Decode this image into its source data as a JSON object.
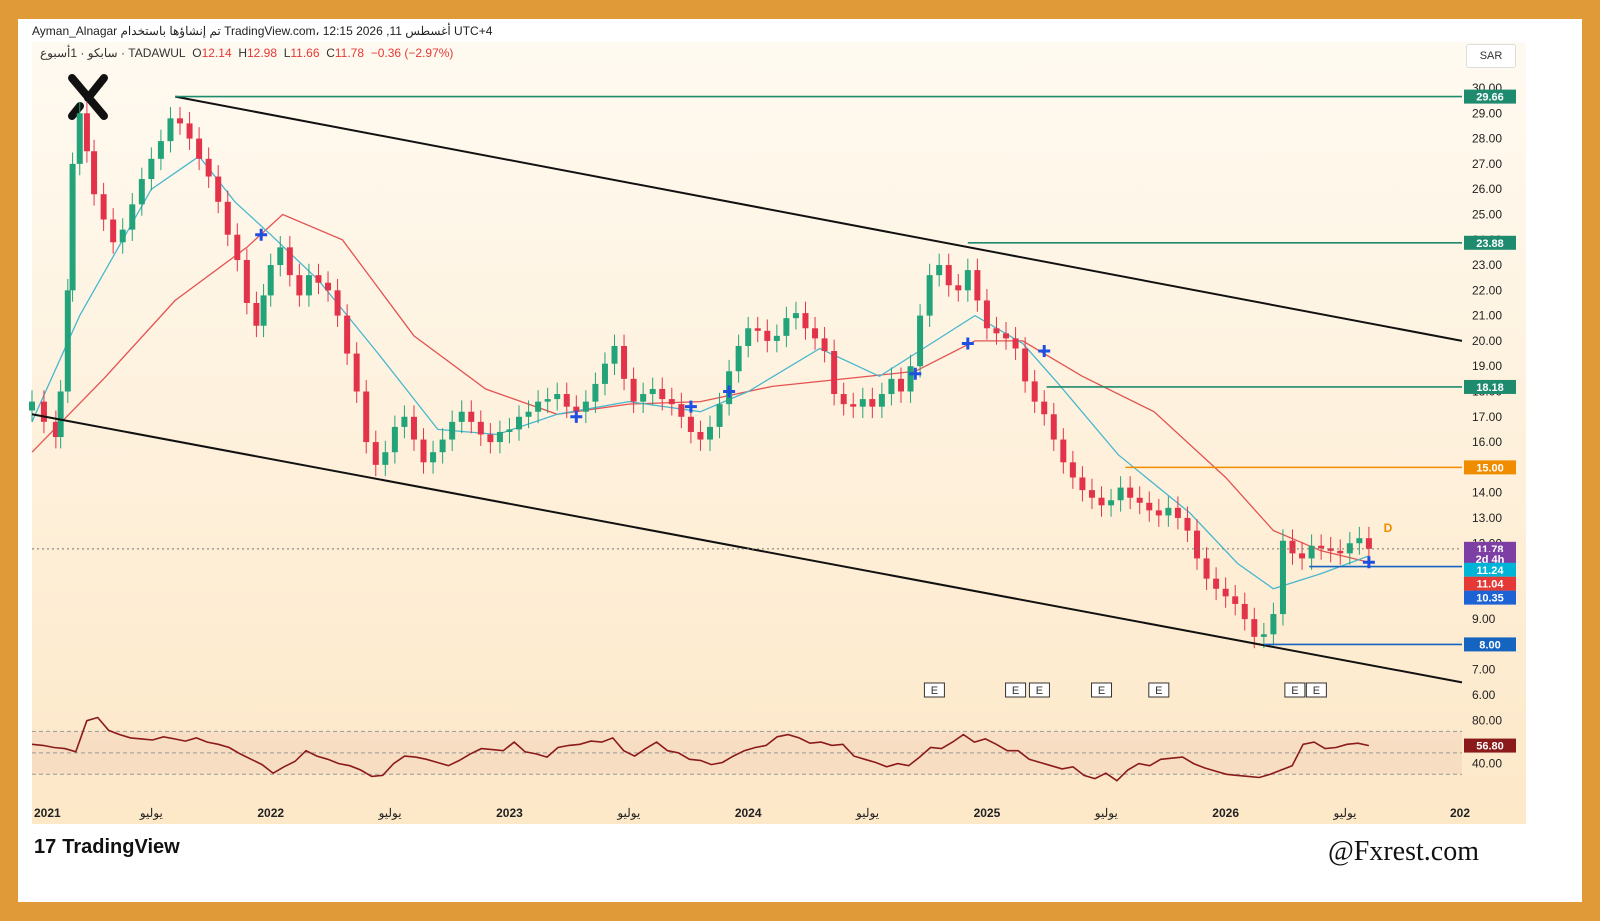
{
  "header": {
    "author_line": "Ayman_Alnagar تم إنشاؤها باستخدام TradingView.com، 12:15 2026 ,11 أغسطس UTC+4",
    "symbol_line": "سابكو · 1أسبوع · TADAWUL",
    "ohlc": {
      "o_label": "O",
      "o": "12.14",
      "h_label": "H",
      "h": "12.98",
      "l_label": "L",
      "l": "11.66",
      "c_label": "C",
      "c": "11.78",
      "chg": "−0.36 (−2.97%)"
    },
    "currency": "SAR"
  },
  "footer": {
    "brand": "TradingView",
    "brand_logo": "17",
    "watermark": "@Fxrest.com"
  },
  "colors": {
    "up": "#22a37a",
    "down": "#e2334a",
    "ema_fast": "#49b7cf",
    "ema_slow": "#e35353",
    "rsi": "#8b1a1a",
    "frame": "#e09a38"
  },
  "chart_data": [
    {
      "type": "candlestick",
      "timeframe": "1W",
      "x_ticks": [
        "2021",
        "يوليو",
        "2022",
        "يوليو",
        "2023",
        "يوليو",
        "2024",
        "يوليو",
        "2025",
        "يوليو",
        "2026",
        "يوليو",
        "202"
      ],
      "y_ticks": [
        "6.00",
        "7.00",
        "8.00",
        "9.00",
        "10.00",
        "11.00",
        "12.00",
        "13.00",
        "14.00",
        "15.00",
        "16.00",
        "17.00",
        "18.00",
        "19.00",
        "20.00",
        "21.00",
        "22.00",
        "23.00",
        "24.00",
        "25.00",
        "26.00",
        "27.00",
        "28.00",
        "29.00",
        "30.00"
      ],
      "ylim": [
        6,
        30
      ],
      "xlim": [
        2021.0,
        2026.99
      ],
      "series": [
        {
          "name": "price",
          "points": [
            [
              2021.0,
              17.6
            ],
            [
              2021.05,
              16.8
            ],
            [
              2021.1,
              16.2
            ],
            [
              2021.12,
              18.0
            ],
            [
              2021.15,
              22.0
            ],
            [
              2021.17,
              27.0
            ],
            [
              2021.2,
              29.0
            ],
            [
              2021.23,
              27.5
            ],
            [
              2021.26,
              25.8
            ],
            [
              2021.3,
              24.8
            ],
            [
              2021.34,
              23.9
            ],
            [
              2021.38,
              24.4
            ],
            [
              2021.42,
              25.4
            ],
            [
              2021.46,
              26.4
            ],
            [
              2021.5,
              27.2
            ],
            [
              2021.54,
              27.9
            ],
            [
              2021.58,
              28.8
            ],
            [
              2021.62,
              28.6
            ],
            [
              2021.66,
              28.0
            ],
            [
              2021.7,
              27.2
            ],
            [
              2021.74,
              26.5
            ],
            [
              2021.78,
              25.5
            ],
            [
              2021.82,
              24.2
            ],
            [
              2021.86,
              23.2
            ],
            [
              2021.9,
              21.5
            ],
            [
              2021.94,
              20.6
            ],
            [
              2021.97,
              21.8
            ],
            [
              2022.0,
              23.0
            ],
            [
              2022.04,
              23.7
            ],
            [
              2022.08,
              22.6
            ],
            [
              2022.12,
              21.8
            ],
            [
              2022.16,
              22.6
            ],
            [
              2022.2,
              22.3
            ],
            [
              2022.24,
              22.0
            ],
            [
              2022.28,
              21.0
            ],
            [
              2022.32,
              19.5
            ],
            [
              2022.36,
              18.0
            ],
            [
              2022.4,
              16.0
            ],
            [
              2022.44,
              15.1
            ],
            [
              2022.48,
              15.6
            ],
            [
              2022.52,
              16.6
            ],
            [
              2022.56,
              17.0
            ],
            [
              2022.6,
              16.1
            ],
            [
              2022.64,
              15.2
            ],
            [
              2022.68,
              15.6
            ],
            [
              2022.72,
              16.1
            ],
            [
              2022.76,
              16.8
            ],
            [
              2022.8,
              17.2
            ],
            [
              2022.84,
              16.8
            ],
            [
              2022.88,
              16.3
            ],
            [
              2022.92,
              16.0
            ],
            [
              2022.96,
              16.4
            ],
            [
              2023.0,
              16.5
            ],
            [
              2023.04,
              17.0
            ],
            [
              2023.08,
              17.2
            ],
            [
              2023.12,
              17.6
            ],
            [
              2023.16,
              17.7
            ],
            [
              2023.2,
              17.9
            ],
            [
              2023.24,
              17.4
            ],
            [
              2023.28,
              17.2
            ],
            [
              2023.32,
              17.6
            ],
            [
              2023.36,
              18.3
            ],
            [
              2023.4,
              19.1
            ],
            [
              2023.44,
              19.8
            ],
            [
              2023.48,
              18.5
            ],
            [
              2023.52,
              17.6
            ],
            [
              2023.56,
              17.9
            ],
            [
              2023.6,
              18.1
            ],
            [
              2023.64,
              17.7
            ],
            [
              2023.68,
              17.5
            ],
            [
              2023.72,
              17.0
            ],
            [
              2023.76,
              16.4
            ],
            [
              2023.8,
              16.1
            ],
            [
              2023.84,
              16.6
            ],
            [
              2023.88,
              17.5
            ],
            [
              2023.92,
              18.8
            ],
            [
              2023.96,
              19.8
            ],
            [
              2024.0,
              20.5
            ],
            [
              2024.04,
              20.4
            ],
            [
              2024.08,
              20.0
            ],
            [
              2024.12,
              20.2
            ],
            [
              2024.16,
              20.9
            ],
            [
              2024.2,
              21.1
            ],
            [
              2024.24,
              20.5
            ],
            [
              2024.28,
              20.1
            ],
            [
              2024.32,
              19.6
            ],
            [
              2024.36,
              17.9
            ],
            [
              2024.4,
              17.5
            ],
            [
              2024.44,
              17.4
            ],
            [
              2024.48,
              17.7
            ],
            [
              2024.52,
              17.4
            ],
            [
              2024.56,
              17.9
            ],
            [
              2024.6,
              18.5
            ],
            [
              2024.64,
              18.0
            ],
            [
              2024.68,
              19.0
            ],
            [
              2024.72,
              21.0
            ],
            [
              2024.76,
              22.6
            ],
            [
              2024.8,
              23.0
            ],
            [
              2024.84,
              22.2
            ],
            [
              2024.88,
              22.0
            ],
            [
              2024.92,
              22.8
            ],
            [
              2024.96,
              21.6
            ],
            [
              2025.0,
              20.5
            ],
            [
              2025.04,
              20.3
            ],
            [
              2025.08,
              20.1
            ],
            [
              2025.12,
              19.7
            ],
            [
              2025.16,
              18.4
            ],
            [
              2025.2,
              17.6
            ],
            [
              2025.24,
              17.1
            ],
            [
              2025.28,
              16.1
            ],
            [
              2025.32,
              15.2
            ],
            [
              2025.36,
              14.6
            ],
            [
              2025.4,
              14.1
            ],
            [
              2025.44,
              13.8
            ],
            [
              2025.48,
              13.5
            ],
            [
              2025.52,
              13.7
            ],
            [
              2025.56,
              14.2
            ],
            [
              2025.6,
              13.8
            ],
            [
              2025.64,
              13.6
            ],
            [
              2025.68,
              13.3
            ],
            [
              2025.72,
              13.1
            ],
            [
              2025.76,
              13.4
            ],
            [
              2025.8,
              13.0
            ],
            [
              2025.84,
              12.5
            ],
            [
              2025.88,
              11.4
            ],
            [
              2025.92,
              10.6
            ],
            [
              2025.96,
              10.2
            ],
            [
              2026.0,
              9.9
            ],
            [
              2026.04,
              9.6
            ],
            [
              2026.08,
              9.0
            ],
            [
              2026.12,
              8.3
            ],
            [
              2026.16,
              8.4
            ],
            [
              2026.2,
              9.2
            ],
            [
              2026.24,
              12.1
            ],
            [
              2026.28,
              11.6
            ],
            [
              2026.32,
              11.4
            ],
            [
              2026.36,
              11.9
            ],
            [
              2026.4,
              11.8
            ],
            [
              2026.44,
              11.7
            ],
            [
              2026.48,
              11.6
            ],
            [
              2026.52,
              12.0
            ],
            [
              2026.56,
              12.2
            ],
            [
              2026.6,
              11.78
            ]
          ]
        },
        {
          "name": "ema_fast",
          "points": [
            [
              2021.0,
              16.8
            ],
            [
              2021.2,
              21.0
            ],
            [
              2021.5,
              26.0
            ],
            [
              2021.7,
              27.3
            ],
            [
              2021.85,
              25.5
            ],
            [
              2022.0,
              24.2
            ],
            [
              2022.2,
              22.4
            ],
            [
              2022.45,
              19.5
            ],
            [
              2022.7,
              16.5
            ],
            [
              2022.95,
              16.3
            ],
            [
              2023.2,
              17.1
            ],
            [
              2023.5,
              17.6
            ],
            [
              2023.8,
              17.2
            ],
            [
              2024.0,
              18.0
            ],
            [
              2024.3,
              19.7
            ],
            [
              2024.55,
              18.6
            ],
            [
              2024.75,
              19.8
            ],
            [
              2024.95,
              21.0
            ],
            [
              2025.15,
              19.9
            ],
            [
              2025.3,
              18.3
            ],
            [
              2025.55,
              15.5
            ],
            [
              2025.85,
              13.2
            ],
            [
              2026.05,
              11.2
            ],
            [
              2026.2,
              10.2
            ],
            [
              2026.4,
              10.8
            ],
            [
              2026.6,
              11.5
            ]
          ]
        },
        {
          "name": "ema_slow",
          "points": [
            [
              2021.0,
              15.6
            ],
            [
              2021.3,
              18.5
            ],
            [
              2021.6,
              21.6
            ],
            [
              2021.9,
              23.7
            ],
            [
              2022.05,
              25.0
            ],
            [
              2022.3,
              24.0
            ],
            [
              2022.6,
              20.2
            ],
            [
              2022.9,
              18.1
            ],
            [
              2023.2,
              17.1
            ],
            [
              2023.5,
              17.5
            ],
            [
              2023.8,
              17.6
            ],
            [
              2024.1,
              18.2
            ],
            [
              2024.4,
              18.5
            ],
            [
              2024.7,
              18.8
            ],
            [
              2024.95,
              20.0
            ],
            [
              2025.15,
              20.0
            ],
            [
              2025.4,
              18.6
            ],
            [
              2025.7,
              17.2
            ],
            [
              2026.0,
              14.6
            ],
            [
              2026.2,
              12.5
            ],
            [
              2026.4,
              11.7
            ],
            [
              2026.6,
              11.25
            ]
          ]
        }
      ],
      "annotations": {
        "channel": [
          [
            2021.6,
            29.66,
            2026.99,
            20.0
          ],
          [
            2021.0,
            17.1,
            2026.99,
            6.5
          ]
        ],
        "levels": [
          {
            "value": 29.66,
            "label": "29.66",
            "from": 2021.6,
            "color": "#1e8a6e"
          },
          {
            "value": 23.88,
            "label": "23.88",
            "from": 2024.92,
            "color": "#1e8a6e"
          },
          {
            "value": 18.18,
            "label": "18.18",
            "from": 2025.25,
            "color": "#1e8a6e"
          },
          {
            "value": 15.0,
            "label": "15.00",
            "from": 2025.58,
            "color": "#f08c00"
          },
          {
            "value": 11.08,
            "label": "11.08",
            "from": 2026.35,
            "color": "#1565c0"
          },
          {
            "value": 8.0,
            "label": "8.00",
            "from": 2026.16,
            "color": "#1565c0"
          }
        ],
        "price_tags": [
          {
            "value": 11.78,
            "label": "11.78",
            "color": "#7e3fa4"
          },
          {
            "value": 11.38,
            "label": "2d 4h",
            "color": "#7e3fa4"
          },
          {
            "value": 10.95,
            "label": "11.24",
            "color": "#00b4d8"
          },
          {
            "value": 10.4,
            "label": "11.04",
            "color": "#e53935"
          },
          {
            "value": 9.85,
            "label": "10.35",
            "color": "#1e63d6"
          }
        ],
        "earnings_marker": "E",
        "earnings": [
          2024.78,
          2025.12,
          2025.22,
          2025.48,
          2025.72,
          2026.29,
          2026.38
        ],
        "dividend_marker": "D",
        "dividend": [
          2026.68
        ],
        "crosses": [
          [
            2021.96,
            24.2
          ],
          [
            2023.28,
            17.0
          ],
          [
            2023.76,
            17.4
          ],
          [
            2023.92,
            18.0
          ],
          [
            2024.7,
            18.7
          ],
          [
            2024.92,
            19.9
          ],
          [
            2025.24,
            19.6
          ],
          [
            2026.6,
            11.25
          ]
        ]
      }
    },
    {
      "type": "line",
      "name": "RSI",
      "y_ticks": [
        "40.00",
        "80.00"
      ],
      "ylim": [
        20,
        90
      ],
      "bands": [
        70,
        30
      ],
      "last_value_label": "56.80",
      "values": [
        58,
        57,
        55,
        54,
        51,
        80,
        83,
        71,
        67,
        64,
        63,
        62,
        65,
        63,
        61,
        64,
        60,
        58,
        55,
        49,
        44,
        39,
        31,
        37,
        42,
        52,
        47,
        44,
        40,
        38,
        34,
        28,
        29,
        40,
        47,
        46,
        44,
        41,
        38,
        43,
        49,
        54,
        53,
        52,
        60,
        51,
        49,
        46,
        55,
        57,
        58,
        61,
        60,
        64,
        52,
        47,
        54,
        60,
        52,
        50,
        44,
        43,
        39,
        41,
        47,
        52,
        55,
        57,
        65,
        67,
        64,
        59,
        60,
        57,
        58,
        47,
        44,
        41,
        37,
        40,
        38,
        46,
        55,
        54,
        60,
        67,
        60,
        63,
        58,
        52,
        52,
        44,
        41,
        38,
        35,
        37,
        29,
        26,
        31,
        24,
        34,
        40,
        38,
        44,
        45,
        46,
        40,
        36,
        33,
        30,
        29,
        28,
        27,
        30,
        34,
        38,
        58,
        60,
        54,
        55,
        58,
        59,
        56.8
      ]
    }
  ]
}
